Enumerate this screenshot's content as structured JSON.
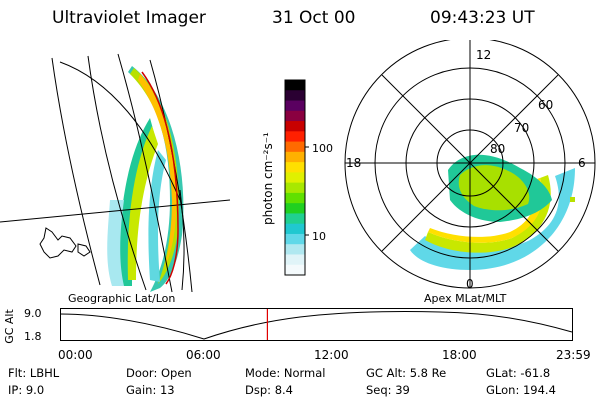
{
  "header": {
    "instrument": "Ultraviolet Imager",
    "date": "31 Oct 00",
    "time": "09:43:23 UT"
  },
  "left_panel": {
    "caption": "Geographic Lat/Lon"
  },
  "right_panel": {
    "caption": "Apex MLat/MLT",
    "lat_labels": [
      "60",
      "70",
      "80"
    ],
    "mlt_labels": {
      "top": "12",
      "left": "18",
      "right": "6",
      "bottom": "0"
    }
  },
  "colorbar": {
    "unit_label": "photon cm⁻²s⁻¹",
    "ticks": [
      "100",
      "10"
    ],
    "colors": [
      "#000000",
      "#2a0032",
      "#5a0060",
      "#8a0040",
      "#c80000",
      "#ff2000",
      "#ff6a00",
      "#ffb000",
      "#ffe000",
      "#e0f000",
      "#a8e800",
      "#60e000",
      "#20d020",
      "#20d090",
      "#20c8d0",
      "#60d8e8",
      "#b0e8f0",
      "#e0f4f8",
      "#f4fafc"
    ]
  },
  "altitude_plot": {
    "ylabel": "GC Alt",
    "yticks": [
      "9.0",
      "1.8"
    ],
    "xticks": [
      "00:00",
      "06:00",
      "12:00",
      "18:00",
      "23:59"
    ],
    "current_time_hours": 9.72
  },
  "info": {
    "row1": [
      {
        "label": "Flt:",
        "value": "LBHL"
      },
      {
        "label": "Door:",
        "value": "Open"
      },
      {
        "label": "Mode:",
        "value": "Normal"
      },
      {
        "label": "GC Alt:",
        "value": "5.8 Re"
      },
      {
        "label": "GLat:",
        "value": "-61.8"
      }
    ],
    "row2": [
      {
        "label": "IP:",
        "value": "9.0"
      },
      {
        "label": "Gain:",
        "value": "13"
      },
      {
        "label": "Dsp:",
        "value": "8.4"
      },
      {
        "label": "Seq:",
        "value": "39"
      },
      {
        "label": "GLon:",
        "value": "194.4"
      }
    ]
  }
}
